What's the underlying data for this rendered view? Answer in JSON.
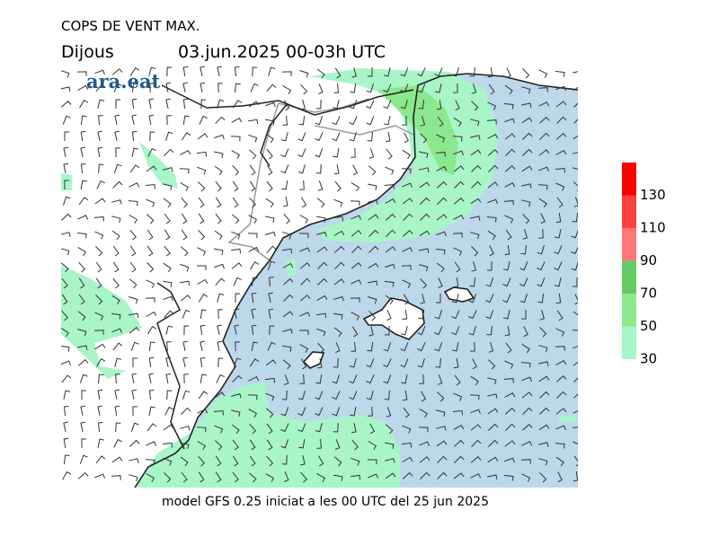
{
  "header": {
    "title": "COPS DE VENT MAX.",
    "day": "Dijous",
    "period": "03.jun.2025 00-03h UTC"
  },
  "logo": "ara.eat",
  "legend": {
    "levels": [
      30,
      50,
      70,
      90,
      110,
      130
    ],
    "colors": [
      "#a8f5c8",
      "#8ce88c",
      "#66cc66",
      "#ff7777",
      "#ff4040",
      "#ff0000"
    ]
  },
  "footer": "model GFS 0.25 iniciat a les 00 UTC del 25 jun 2025"
}
